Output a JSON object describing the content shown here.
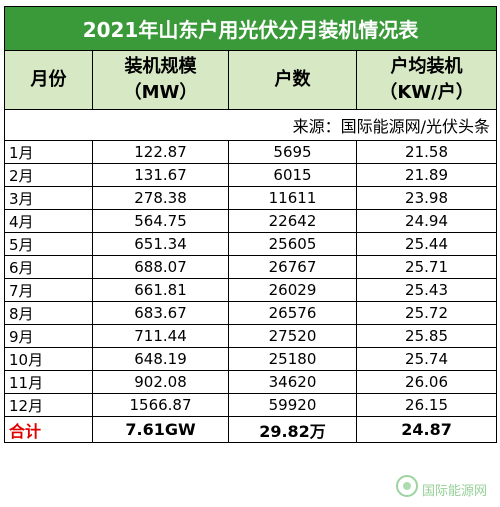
{
  "title": "2021年山东户用光伏分月装机情况表",
  "headers": {
    "month": "月份",
    "capacity_line1": "装机规模",
    "capacity_line2": "（MW）",
    "households": "户数",
    "avg_line1": "户均装机",
    "avg_line2": "（KW/户）"
  },
  "source": "来源：国际能源网/光伏头条",
  "rows": [
    {
      "month": "1月",
      "capacity": "122.87",
      "households": "5695",
      "avg": "21.58"
    },
    {
      "month": "2月",
      "capacity": "131.67",
      "households": "6015",
      "avg": "21.89"
    },
    {
      "month": "3月",
      "capacity": "278.38",
      "households": "11611",
      "avg": "23.98"
    },
    {
      "month": "4月",
      "capacity": "564.75",
      "households": "22642",
      "avg": "24.94"
    },
    {
      "month": "5月",
      "capacity": "651.34",
      "households": "25605",
      "avg": "25.44"
    },
    {
      "month": "6月",
      "capacity": "688.07",
      "households": "26767",
      "avg": "25.71"
    },
    {
      "month": "7月",
      "capacity": "661.81",
      "households": "26029",
      "avg": "25.43"
    },
    {
      "month": "8月",
      "capacity": "683.67",
      "households": "26576",
      "avg": "25.72"
    },
    {
      "month": "9月",
      "capacity": "711.44",
      "households": "27520",
      "avg": "25.85"
    },
    {
      "month": "10月",
      "capacity": "648.19",
      "households": "25180",
      "avg": "25.74"
    },
    {
      "month": "11月",
      "capacity": "902.08",
      "households": "34620",
      "avg": "26.06"
    },
    {
      "month": "12月",
      "capacity": "1566.87",
      "households": "59920",
      "avg": "26.15"
    }
  ],
  "total": {
    "label": "合计",
    "capacity": "7.61GW",
    "households": "29.82万",
    "avg": "24.87"
  },
  "watermark": "国际能源网",
  "colors": {
    "title_bg": "#3a9a3a",
    "header_bg": "#d6e8c4",
    "total_label": "#e00000"
  }
}
